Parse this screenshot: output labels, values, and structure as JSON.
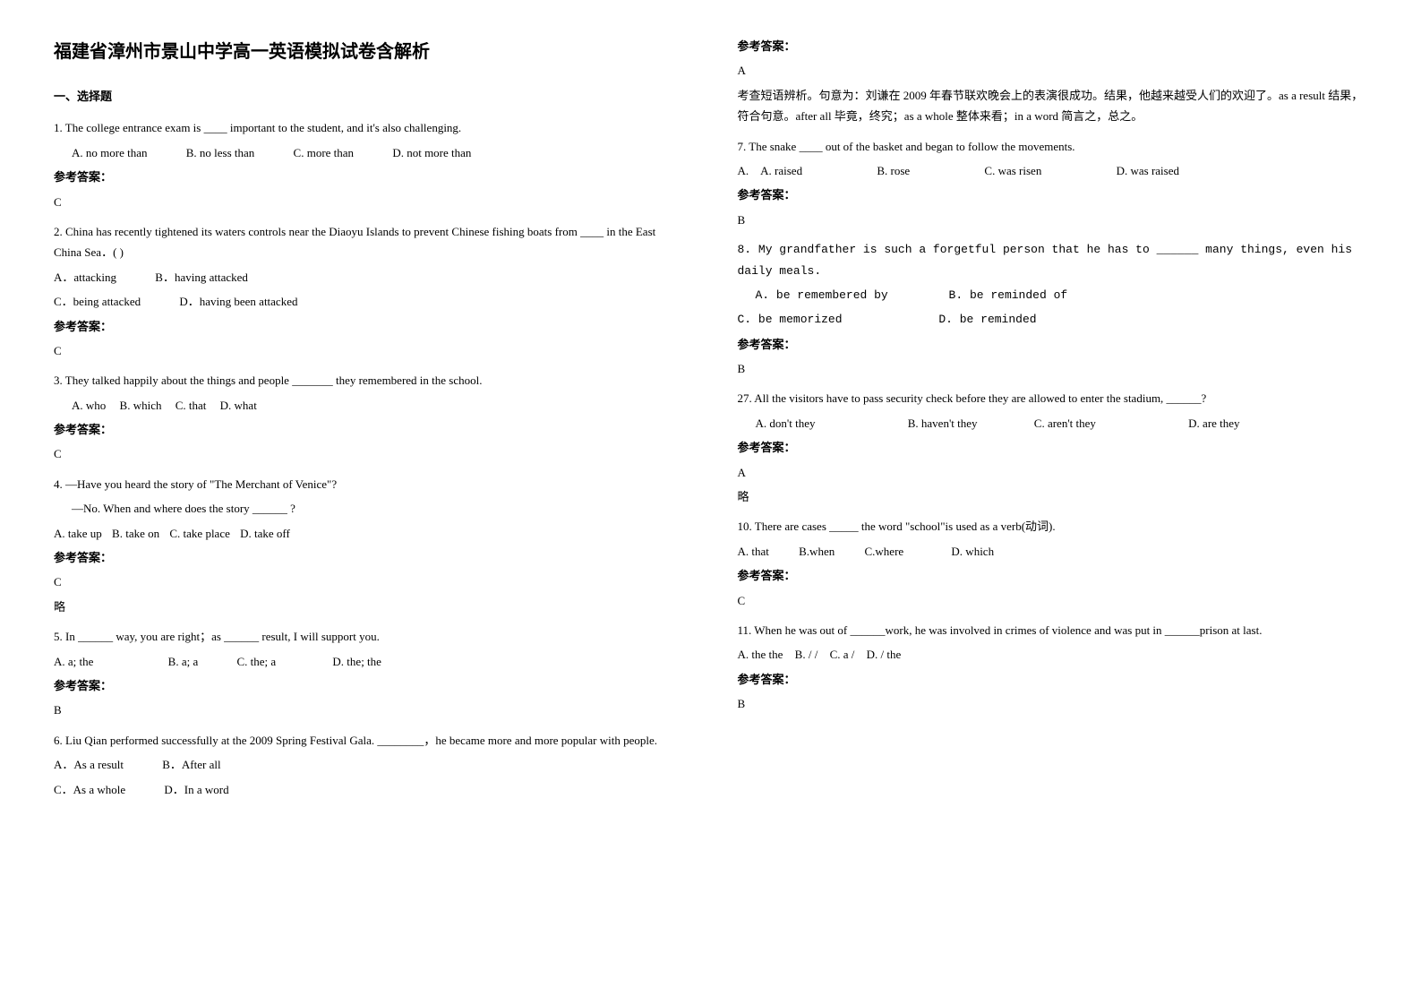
{
  "title": "福建省漳州市景山中学高一英语模拟试卷含解析",
  "section1": "一、选择题",
  "answer_label": "参考答案：",
  "lue": "略",
  "q1": {
    "text": "1. The college entrance exam is ____ important to the student, and it's also challenging.",
    "optA": "A. no more than",
    "optB": "B. no less than",
    "optC": "C. more than",
    "optD": "D. not more than",
    "ans": "C"
  },
  "q2": {
    "text": "2. China has recently tightened its waters controls near the Diaoyu Islands to prevent Chinese fishing boats from ____ in the East China Sea．(  )",
    "optA": "A．attacking",
    "optB": "B．having attacked",
    "optC": "C．being attacked",
    "optD": "D．having been attacked",
    "ans": "C"
  },
  "q3": {
    "text": "3. They talked happily about the things and people _______ they remembered in the school.",
    "optA": "A. who",
    "optB": "B. which",
    "optC": "C. that",
    "optD": "D. what",
    "ans": "C"
  },
  "q4": {
    "line1": "4. —Have you heard the story of \"The Merchant of Venice\"?",
    "line2": "—No. When and where does the story ______ ?",
    "optA": "A. take up",
    "optB": "B. take on",
    "optC": "C. take place",
    "optD": "D. take off",
    "ans": "C"
  },
  "q5": {
    "text": "5. In ______ way, you are right；as ______ result, I will support you.",
    "optA": "A. a; the",
    "optB": "B. a; a",
    "optC": "C. the; a",
    "optD": "D. the; the",
    "ans": "B"
  },
  "q6": {
    "text": "6. Liu Qian performed successfully at the 2009 Spring Festival Gala. ________，he became more and more popular with people.",
    "optA": "A．As a result",
    "optB": "B．After all",
    "optC": "C．As a whole",
    "optD": "D．In a word",
    "ans": "A",
    "explain": "考查短语辨析。句意为：刘谦在 2009 年春节联欢晚会上的表演很成功。结果，他越来越受人们的欢迎了。as a result 结果，符合句意。after all 毕竟，终究；as a whole 整体来看；in a word 简言之，总之。"
  },
  "q7": {
    "text": "7. The snake ____ out of the basket and began to follow the movements.",
    "optA": "A.　A. raised",
    "optB": "B. rose",
    "optC": "C. was risen",
    "optD": "D. was raised",
    "ans": "B"
  },
  "q8": {
    "text": "8.  My grandfather is such a forgetful person that he has to ______ many things, even his daily meals.",
    "optA": "A. be remembered by",
    "optB": "B. be reminded of",
    "optC": "C. be memorized",
    "optD": "D. be reminded",
    "ans": "B"
  },
  "q9": {
    "text": "27. All the visitors have to pass security check before they are allowed to enter the stadium, ______?",
    "optA": "A. don't they",
    "optB": "B. haven't they",
    "optC": "C. aren't they",
    "optD": "D. are they",
    "ans": "A"
  },
  "q10": {
    "text": "10. There are cases _____ the word \"school\"is used as a verb(动词).",
    "optA": "A. that",
    "optB": "B.when",
    "optC": "C.where",
    "optD": "D. which",
    "ans": "C"
  },
  "q11": {
    "text": "11. When he was out of ______work, he was involved in crimes of violence and was put in ______prison at last.",
    "optA": "A. the  the",
    "optB": "B. /  /",
    "optC": "C. a  /",
    "optD": "D. / the",
    "ans": "B"
  }
}
